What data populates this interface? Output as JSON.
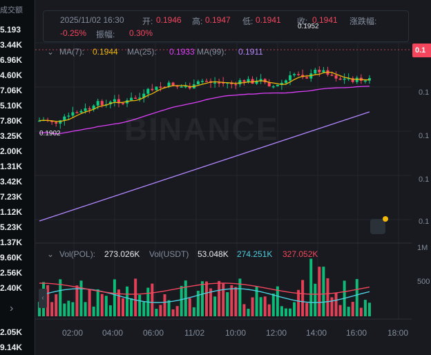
{
  "left_column": {
    "header": "成交额",
    "values": [
      "5.193",
      "3.44K",
      "6.96K",
      "4.60K",
      "7.06K",
      "5.10K",
      "7.80K",
      "3.25K",
      "2.00K",
      "1.31K",
      "3.42K",
      "7.23K",
      "1.12K",
      "5.23K",
      "1.37K",
      "9.60K",
      "2.56K",
      "2.40K",
      "2.05K",
      "9.14K"
    ],
    "arrow": "›"
  },
  "ohlc": {
    "datetime": "2025/11/02 16:30",
    "open_label": "开:",
    "open": "0.1946",
    "high_label": "高:",
    "high": "0.1947",
    "low_label": "低:",
    "low": "0.1941",
    "close_label": "收:",
    "close": "0.1941",
    "change_label": "涨跌幅:",
    "change": "-0.25%",
    "amp_label": "振幅:",
    "amp": "0.30%"
  },
  "ma": {
    "ma7_label": "MA(7):",
    "ma7": "0.1944",
    "ma7_color": "#f0b90b",
    "ma25_label": "MA(25):",
    "ma25": "0.1933",
    "ma25_color": "#e040fb",
    "ma99_label": "MA(99):",
    "ma99": "0.1911",
    "ma99_color": "#b388ff"
  },
  "volume": {
    "vol_label": "Vol(POL):",
    "vol": "273.026K",
    "usdt_label": "Vol(USDT)",
    "usdt": "53.048K",
    "v1": "274.251K",
    "v1_color": "#4dd0e1",
    "v2": "327.052K",
    "v2_color": "#f6465d"
  },
  "price_tag": "0.1",
  "y_axis_labels": [
    "0.1",
    "0.1",
    "0.1",
    "0.1"
  ],
  "vol_axis_labels": [
    "1M",
    "500"
  ],
  "x_axis": [
    "02:00",
    "04:00",
    "06:00",
    "11/02",
    "10:00",
    "12:00",
    "14:00",
    "16:00",
    "18:00"
  ],
  "annotations": {
    "low_marker": "0.1902",
    "high_marker": "0.1952"
  },
  "watermark": "BINANCE",
  "colors": {
    "up": "#0ecb81",
    "down": "#f6465d",
    "bg": "#181a20"
  }
}
